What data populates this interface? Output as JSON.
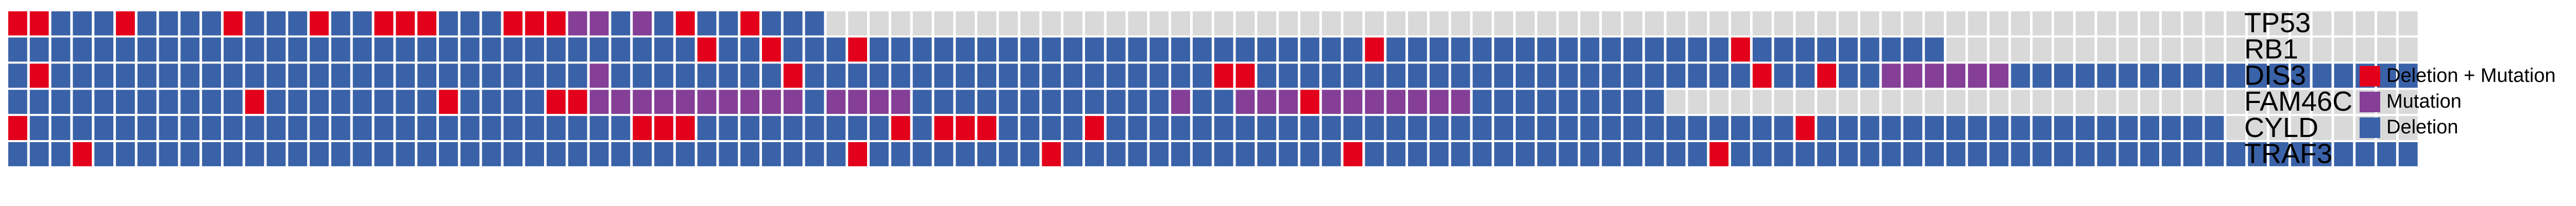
{
  "chart_data": {
    "type": "heatmap",
    "title": "",
    "categories_y": [
      "TP53",
      "RB1",
      "DIS3",
      "FAM46C",
      "CYLD",
      "TRAF3"
    ],
    "legend": [
      {
        "key": "DM",
        "label": "Deletion + Mutation",
        "color": "#e3001b"
      },
      {
        "key": "M",
        "label": "Mutation",
        "color": "#853f97"
      },
      {
        "key": "D",
        "label": "Deletion",
        "color": "#3a62a8"
      }
    ],
    "none_color": "#d9d9d9",
    "legend_position": "right",
    "sample_count": 112,
    "rows": [
      {
        "gene": "TP53",
        "cells": "2DM3D1DM4D1DM3D1DM2D3DM3D3DM2M1D1M1D1DM2D1DM3D77"
      },
      {
        "gene": "RB1",
        "cells": "32D1DM2D1DM3D1DM23D1DM1D15D1DM9D16"
      },
      {
        "gene": "DIS3",
        "cells": "1D1DM1D24D1M8D1DM19D1DM1DM23D1DM2D1DM2D5M1M1D24D11D1DM1D4"
      },
      {
        "gene": "FAM46C",
        "cells": "1D1D1D1D1D1D1D1D1D1D1D1DM8D1DM4D1DM1DM10M1D3M1M4D7D1D1M1D1D3M1DM1M3M3M8D1D8"
      },
      {
        "gene": "CYLD",
        "cells": "1DM5D14D1D1D3D2D1D1D3DM1D3D5D1DM1D2DM1DM4D1DM2D29D1D1DM2D1D12D4D8"
      },
      {
        "gene": "TRAF3",
        "cells": "1D2D1DM1D6D14D13D1D1DM5D3D1DM13D1DM16D1DM1D17D14D1D1D3D9"
      }
    ]
  }
}
